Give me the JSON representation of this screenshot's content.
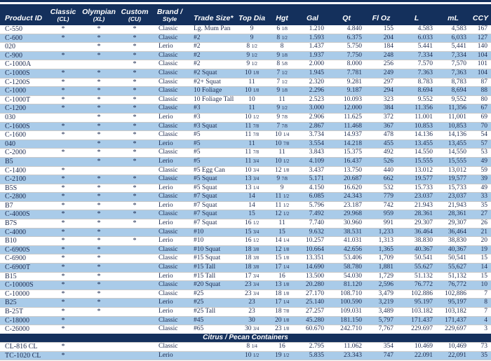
{
  "colors": {
    "header_navy": "#14305c",
    "row_blue": "#a9cbe9",
    "grid_gray": "#c9c9c9",
    "text_ink": "#1c2a4e"
  },
  "table": {
    "columns": [
      {
        "label": "Product ID"
      },
      {
        "label": "Classic",
        "sublabel": "(CL)"
      },
      {
        "label": "Olympian",
        "sublabel": "(XL)"
      },
      {
        "label": "Custom",
        "sublabel": "(CU)"
      },
      {
        "label": "Brand /",
        "sublabel": "Style"
      },
      {
        "label": "Trade Size*"
      },
      {
        "label": "Top Dia"
      },
      {
        "label": "Hgt"
      },
      {
        "label": "Gal"
      },
      {
        "label": "Qt"
      },
      {
        "label": "Fl Oz"
      },
      {
        "label": "L"
      },
      {
        "label": "mL"
      },
      {
        "label": "CCY"
      }
    ],
    "rows": [
      [
        "C-550",
        "*",
        "*",
        "*",
        "Classic",
        "Lg. Mum Pan",
        "9",
        "6 1/8",
        "1.210",
        "4.840",
        "155",
        "4.583",
        "4,583",
        "167"
      ],
      [
        "C-600",
        "*",
        "*",
        "*",
        "Classic",
        "#2",
        "9",
        "8 1/2",
        "1.593",
        "6.375",
        "204",
        "6.033",
        "6,033",
        "127"
      ],
      [
        "020",
        "",
        "*",
        "*",
        "Lerio",
        "#2",
        "8 1/2",
        "8",
        "1.437",
        "5.750",
        "184",
        "5.441",
        "5,441",
        "140"
      ],
      [
        "C-900",
        "*",
        "*",
        "*",
        "Classic",
        "#2",
        "9 1/2",
        "9 1/8",
        "1.937",
        "7.750",
        "248",
        "7.334",
        "7,334",
        "104"
      ],
      [
        "C-1000A",
        "",
        "",
        "*",
        "Classic",
        "#2",
        "9 1/2",
        "8 5/8",
        "2.000",
        "8.000",
        "256",
        "7.570",
        "7,570",
        "101"
      ],
      [
        "C-1000S",
        "*",
        "*",
        "*",
        "Classic",
        "#2 Squat",
        "10 1/8",
        "7 1/2",
        "1.945",
        "7.781",
        "249",
        "7.363",
        "7,363",
        "104"
      ],
      [
        "C-1200S",
        "*",
        "*",
        "*",
        "Classic",
        "#2+ Squat",
        "11",
        "7 1/2",
        "2.320",
        "9.281",
        "297",
        "8.783",
        "8,783",
        "87"
      ],
      [
        "C-1000",
        "*",
        "*",
        "*",
        "Classic",
        "10 Foliage",
        "10 1/8",
        "9 1/8",
        "2.296",
        "9.187",
        "294",
        "8.694",
        "8,694",
        "88"
      ],
      [
        "C-1000T",
        "*",
        "*",
        "*",
        "Classic",
        "10 Foliage Tall",
        "10",
        "11",
        "2.523",
        "10.093",
        "323",
        "9.552",
        "9,552",
        "80"
      ],
      [
        "C-1200",
        "*",
        "*",
        "*",
        "Classic",
        "#3",
        "11",
        "9 1/2",
        "3.000",
        "12.000",
        "384",
        "11.356",
        "11,356",
        "67"
      ],
      [
        "030",
        "",
        "*",
        "*",
        "Lerio",
        "#3",
        "10 1/2",
        "9 7/8",
        "2.906",
        "11.625",
        "372",
        "11.001",
        "11,001",
        "69"
      ],
      [
        "C-1600S",
        "*",
        "*",
        "*",
        "Classic",
        "#3 Squat",
        "11 7/8",
        "7 7/8",
        "2.867",
        "11.468",
        "367",
        "10.853",
        "10,853",
        "70"
      ],
      [
        "C-1600",
        "*",
        "*",
        "*",
        "Classic",
        "#5",
        "11 7/8",
        "10 1/4",
        "3.734",
        "14.937",
        "478",
        "14.136",
        "14,136",
        "54"
      ],
      [
        "040",
        "",
        "*",
        "*",
        "Lerio",
        "#5",
        "11",
        "10 7/8",
        "3.554",
        "14.218",
        "455",
        "13.455",
        "13,455",
        "57"
      ],
      [
        "C-2000",
        "*",
        "*",
        "*",
        "Classic",
        "#5",
        "11 7/8",
        "11",
        "3.843",
        "15.375",
        "492",
        "14.550",
        "14,550",
        "53"
      ],
      [
        "B5",
        "",
        "*",
        "*",
        "Lerio",
        "#5",
        "11 3/4",
        "10 1/2",
        "4.109",
        "16.437",
        "526",
        "15.555",
        "15,555",
        "49"
      ],
      [
        "C-1400",
        "*",
        "",
        "",
        "Classic",
        "#5 Egg Can",
        "10 3/4",
        "12 1/8",
        "3.437",
        "13.750",
        "440",
        "13.012",
        "13,012",
        "59"
      ],
      [
        "C-2100",
        "*",
        "*",
        "*",
        "Classic",
        "#5 Squat",
        "13 3/4",
        "9 7/8",
        "5.171",
        "20.687",
        "662",
        "19.577",
        "19,577",
        "39"
      ],
      [
        "B5S",
        "*",
        "*",
        "*",
        "Lerio",
        "#5 Squat",
        "13 1/4",
        "9",
        "4.150",
        "16.620",
        "532",
        "15.733",
        "15,733",
        "49"
      ],
      [
        "C-2800",
        "*",
        "*",
        "*",
        "Classic",
        "#7 Squat",
        "14",
        "11 1/2",
        "6.085",
        "24.343",
        "779",
        "23.037",
        "23,037",
        "33"
      ],
      [
        "B7",
        "*",
        "*",
        "*",
        "Lerio",
        "#7 Squat",
        "14",
        "11 1/2",
        "5.796",
        "23.187",
        "742",
        "21.943",
        "21,943",
        "35"
      ],
      [
        "C-4000S",
        "*",
        "*",
        "*",
        "Classic",
        "#7 Squat",
        "15",
        "12 1/2",
        "7.492",
        "29.968",
        "959",
        "28.361",
        "28,361",
        "27"
      ],
      [
        "B7S",
        "*",
        "*",
        "*",
        "Lerio",
        "#7 Squat",
        "16 1/2",
        "11",
        "7.740",
        "30.960",
        "991",
        "29.307",
        "29,307",
        "26"
      ],
      [
        "C-4000",
        "*",
        "*",
        "",
        "Classic",
        "#10",
        "15 3/4",
        "15",
        "9.632",
        "38.531",
        "1,233",
        "36.464",
        "36,464",
        "21"
      ],
      [
        "B10",
        "*",
        "*",
        "*",
        "Lerio",
        "#10",
        "16 1/2",
        "14 1/4",
        "10.257",
        "41.031",
        "1,313",
        "38.830",
        "38,830",
        "20"
      ],
      [
        "C-6900S",
        "*",
        "*",
        "",
        "Classic",
        "#10 Squat",
        "18 3/8",
        "12 1/8",
        "10.664",
        "42.656",
        "1,365",
        "40.367",
        "40,367",
        "19"
      ],
      [
        "C-6900",
        "*",
        "*",
        "",
        "Classic",
        "#15 Squat",
        "18 3/8",
        "15 1/8",
        "13.351",
        "53.406",
        "1,709",
        "50.541",
        "50,541",
        "15"
      ],
      [
        "C-6900T",
        "*",
        "*",
        "",
        "Classic",
        "#15 Tall",
        "18 3/8",
        "17 1/4",
        "14.690",
        "58.780",
        "1,881",
        "55.627",
        "55,627",
        "14"
      ],
      [
        "B15",
        "*",
        "*",
        "",
        "Lerio",
        "#15 Tall",
        "17 3/4",
        "16",
        "13.500",
        "54.030",
        "1,729",
        "51.132",
        "51,132",
        "15"
      ],
      [
        "C-10000S",
        "*",
        "*",
        "",
        "Classic",
        "#20 Squat",
        "23 3/4",
        "13 1/8",
        "20.280",
        "81.120",
        "2,596",
        "76.772",
        "76,772",
        "10"
      ],
      [
        "C-10000",
        "*",
        "*",
        "",
        "Classic",
        "#25",
        "23 3/4",
        "18 1/8",
        "27.170",
        "108.710",
        "3,479",
        "102.886",
        "102,886",
        "7"
      ],
      [
        "B25",
        "*",
        "*",
        "",
        "Lerio",
        "#25",
        "23",
        "17 1/4",
        "25.140",
        "100.590",
        "3,219",
        "95.197",
        "95,197",
        "8"
      ],
      [
        "B-25T",
        "*",
        "*",
        "",
        "Lerio",
        "#25 Tall",
        "23",
        "18 7/8",
        "27.257",
        "109.031",
        "3,489",
        "103.182",
        "103,182",
        "7"
      ],
      [
        "C-18000",
        "*",
        "",
        "",
        "Classic",
        "#45",
        "30",
        "20 1/8",
        "45.280",
        "181.150",
        "5,797",
        "171.437",
        "171,437",
        "4"
      ],
      [
        "C-26000",
        "*",
        "",
        "",
        "Classic",
        "#65",
        "30 3/4",
        "23 1/8",
        "60.670",
        "242.710",
        "7,767",
        "229.697",
        "229,697",
        "3"
      ]
    ],
    "section": {
      "title": "Citrus / Pecan Containers",
      "rows": [
        [
          "CL-816 CL",
          "*",
          "",
          "",
          "Classic",
          "",
          "8 1/4",
          "16",
          "2.795",
          "11.062",
          "354",
          "10.469",
          "10,469",
          "73"
        ],
        [
          "TC-1020 CL",
          "*",
          "",
          "",
          "Lerio",
          "",
          "10 1/2",
          "19 1/2",
          "5.835",
          "23.343",
          "747",
          "22.091",
          "22,091",
          "35"
        ]
      ]
    }
  }
}
